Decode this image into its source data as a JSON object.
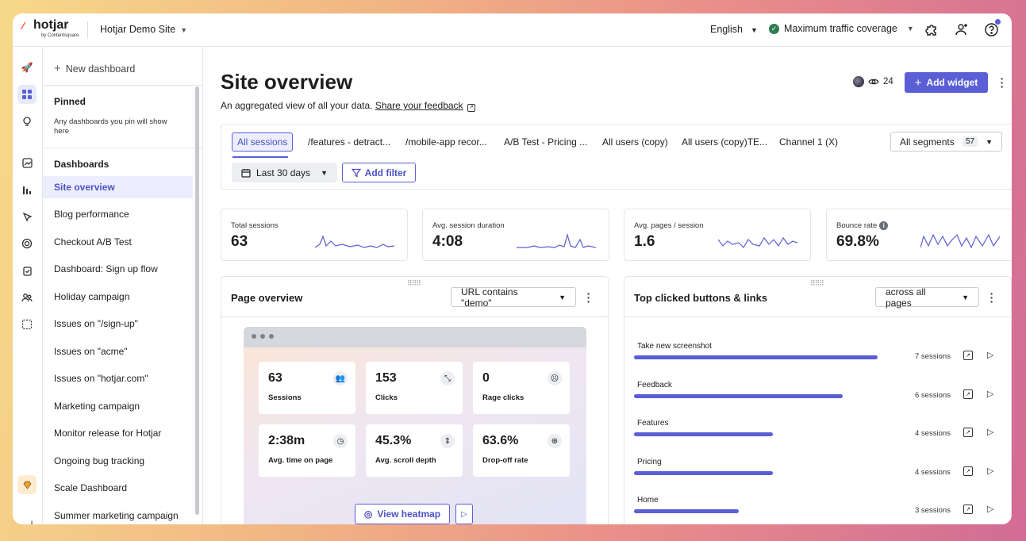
{
  "topbar": {
    "logo_text": "hotjar",
    "logo_sub": "by Contentsquare",
    "site_name": "Hotjar Demo Site",
    "language": "English",
    "traffic": "Maximum traffic coverage"
  },
  "sidebar": {
    "new_dashboard": "New dashboard",
    "pinned_heading": "Pinned",
    "pinned_text": "Any dashboards you pin will show here",
    "dashboards_heading": "Dashboards",
    "items": [
      {
        "label": "Site overview"
      },
      {
        "label": "Blog performance"
      },
      {
        "label": "Checkout A/B Test"
      },
      {
        "label": "Dashboard: Sign up flow"
      },
      {
        "label": "Holiday campaign"
      },
      {
        "label": "Issues on \"/sign-up\""
      },
      {
        "label": "Issues on \"acme\""
      },
      {
        "label": "Issues on \"hotjar.com\""
      },
      {
        "label": "Marketing campaign"
      },
      {
        "label": "Monitor release for Hotjar"
      },
      {
        "label": "Ongoing bug tracking"
      },
      {
        "label": "Scale Dashboard"
      },
      {
        "label": "Summer marketing campaign"
      }
    ]
  },
  "header": {
    "title": "Site overview",
    "subtitle": "An aggregated view of all your data.",
    "feedback_link": "Share your feedback",
    "viewer_count": "24",
    "add_widget": "Add widget"
  },
  "segments": {
    "tabs": [
      {
        "label": "All sessions"
      },
      {
        "label": "/features - detract..."
      },
      {
        "label": "/mobile-app recor..."
      },
      {
        "label": "A/B Test - Pricing ..."
      },
      {
        "label": "All users (copy)"
      },
      {
        "label": "All users (copy)TE..."
      },
      {
        "label": "Channel 1 (X)"
      }
    ],
    "all_segments": "All segments",
    "all_segments_count": "57",
    "date_range": "Last 30 days",
    "add_filter": "Add filter"
  },
  "metrics": [
    {
      "label": "Total sessions",
      "value": "63"
    },
    {
      "label": "Avg. session duration",
      "value": "4:08"
    },
    {
      "label": "Avg. pages / session",
      "value": "1.6"
    },
    {
      "label": "Bounce rate",
      "value": "69.8%"
    }
  ],
  "page_overview": {
    "title": "Page overview",
    "url_filter": "URL contains \"demo\"",
    "tiles": [
      {
        "value": "63",
        "label": "Sessions",
        "icon": "users-icon"
      },
      {
        "value": "153",
        "label": "Clicks",
        "icon": "click-icon"
      },
      {
        "value": "0",
        "label": "Rage clicks",
        "icon": "rage-face-icon"
      },
      {
        "value": "2:38m",
        "label": "Avg. time on page",
        "icon": "clock-icon"
      },
      {
        "value": "45.3%",
        "label": "Avg. scroll depth",
        "icon": "scroll-icon"
      },
      {
        "value": "63.6%",
        "label": "Drop-off rate",
        "icon": "drop-off-icon"
      }
    ],
    "view_heatmap": "View heatmap"
  },
  "top_clicked": {
    "title": "Top clicked buttons & links",
    "scope": "across all pages",
    "rows": [
      {
        "label": "Take new screenshot",
        "sessions": "7 sessions",
        "count": 7
      },
      {
        "label": "Feedback",
        "sessions": "6 sessions",
        "count": 6
      },
      {
        "label": "Features",
        "sessions": "4 sessions",
        "count": 4
      },
      {
        "label": "Pricing",
        "sessions": "4 sessions",
        "count": 4
      },
      {
        "label": "Home",
        "sessions": "3 sessions",
        "count": 3
      }
    ]
  },
  "colors": {
    "accent": "#5a5fd6",
    "success": "#2e7d4f"
  }
}
